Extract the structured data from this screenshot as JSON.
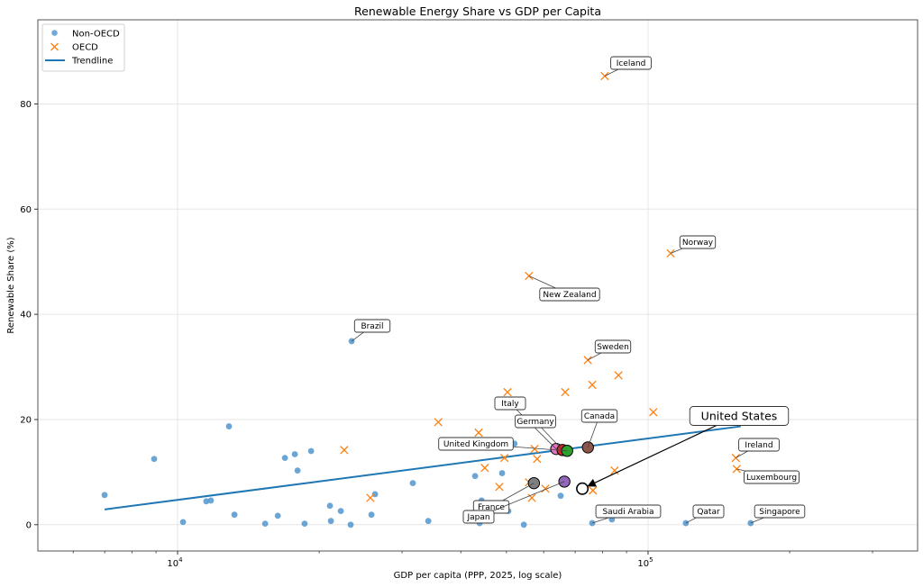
{
  "chart_data": {
    "type": "scatter",
    "title": "Renewable Energy Share vs GDP per Capita",
    "xlabel": "GDP per capita (PPP, 2025, log scale)",
    "ylabel": "Renewable Share (%)",
    "xscale": "log",
    "xlim": [
      5047,
      374000
    ],
    "ylim": [
      -5,
      96
    ],
    "x_ticks": [
      {
        "value": 10000,
        "base": "10",
        "exp": "4"
      },
      {
        "value": 100000,
        "base": "10",
        "exp": "5"
      }
    ],
    "y_ticks": [
      0,
      20,
      40,
      60,
      80
    ],
    "y_tick_labels": [
      "0",
      "20",
      "40",
      "60",
      "80"
    ],
    "grid": true,
    "legend": {
      "placement": "top-left",
      "entries": [
        "Non-OECD",
        "OECD",
        "Trendline"
      ]
    },
    "colors": {
      "non_oecd": "#5b9bd0",
      "oecd": "#ff7f0e",
      "trendline": "#1f77b4"
    },
    "series": [
      {
        "name": "Non-OECD",
        "marker": "circle",
        "points": [
          [
            6998,
            5.65
          ],
          [
            8917,
            12.5
          ],
          [
            12860,
            18.7
          ],
          [
            10270,
            0.5
          ],
          [
            11510,
            4.45
          ],
          [
            11770,
            4.6
          ],
          [
            13210,
            1.9
          ],
          [
            15350,
            0.2
          ],
          [
            16330,
            1.7
          ],
          [
            16910,
            12.7
          ],
          [
            17750,
            13.4
          ],
          [
            19220,
            14.0
          ],
          [
            17990,
            10.3
          ],
          [
            18620,
            0.2
          ],
          [
            21080,
            3.6
          ],
          [
            22230,
            2.6
          ],
          [
            21180,
            0.7
          ],
          [
            23330,
            0.0
          ],
          [
            25830,
            1.9
          ],
          [
            26290,
            5.8
          ],
          [
            23440,
            34.9
          ],
          [
            31620,
            7.9
          ],
          [
            34110,
            0.7
          ],
          [
            42890,
            9.25
          ],
          [
            48950,
            9.8
          ],
          [
            44270,
            4.6
          ],
          [
            43850,
            0.3
          ],
          [
            50470,
            2.6
          ],
          [
            54440,
            0.0
          ],
          [
            52010,
            15.4
          ],
          [
            65190,
            5.5
          ],
          [
            76080,
            0.3
          ],
          [
            83780,
            1.0
          ],
          [
            120300,
            0.3
          ],
          [
            165200,
            0.3
          ]
        ]
      },
      {
        "name": "OECD",
        "marker": "x",
        "points": [
          [
            80900,
            85.3
          ],
          [
            111700,
            51.6
          ],
          [
            55830,
            47.3
          ],
          [
            74470,
            31.3
          ],
          [
            86500,
            28.4
          ],
          [
            76080,
            26.6
          ],
          [
            66660,
            25.2
          ],
          [
            50260,
            25.2
          ],
          [
            102600,
            21.4
          ],
          [
            35810,
            19.5
          ],
          [
            22600,
            14.2
          ],
          [
            43640,
            17.5
          ],
          [
            57390,
            14.4
          ],
          [
            58090,
            12.5
          ],
          [
            49520,
            12.7
          ],
          [
            44970,
            10.8
          ],
          [
            48290,
            7.2
          ],
          [
            55830,
            8.05
          ],
          [
            60480,
            6.85
          ],
          [
            56610,
            5.1
          ],
          [
            76340,
            6.5
          ],
          [
            84920,
            10.3
          ],
          [
            153600,
            12.7
          ],
          [
            154300,
            10.6
          ],
          [
            25690,
            5.1
          ]
        ]
      }
    ],
    "trendline": {
      "name": "Trendline",
      "x": [
        6998,
        157400
      ],
      "y": [
        2.9,
        18.7
      ]
    },
    "highlighted": [
      {
        "name": "Italy",
        "x": 63800,
        "y": 14.4,
        "color": "#e377c2"
      },
      {
        "name": "Germany",
        "x": 65800,
        "y": 14.2,
        "color": "#d62728"
      },
      {
        "name": "United Kingdom",
        "x": 67300,
        "y": 14.05,
        "color": "#2ca02c"
      },
      {
        "name": "Canada",
        "x": 74500,
        "y": 14.7,
        "color": "#8c564b"
      },
      {
        "name": "France",
        "x": 57200,
        "y": 7.9,
        "color": "#7f7f7f"
      },
      {
        "name": "Japan",
        "x": 66400,
        "y": 8.2,
        "color": "#9467bd"
      },
      {
        "name": "United States",
        "x": 72500,
        "y": 6.85,
        "color": "none"
      }
    ],
    "annotations": [
      {
        "text": "Iceland",
        "x": 80900,
        "y": 85.3
      },
      {
        "text": "Norway",
        "x": 111700,
        "y": 51.6
      },
      {
        "text": "New Zealand",
        "x": 55830,
        "y": 47.3
      },
      {
        "text": "Brazil",
        "x": 23440,
        "y": 34.9
      },
      {
        "text": "Sweden",
        "x": 74470,
        "y": 31.3
      },
      {
        "text": "Italy",
        "x": 63800,
        "y": 14.4
      },
      {
        "text": "Germany",
        "x": 65800,
        "y": 14.2
      },
      {
        "text": "Canada",
        "x": 74500,
        "y": 14.7
      },
      {
        "text": "United Kingdom",
        "x": 67300,
        "y": 14.05
      },
      {
        "text": "United States",
        "x": 72500,
        "y": 6.85
      },
      {
        "text": "Ireland",
        "x": 153600,
        "y": 12.7
      },
      {
        "text": "Luxembourg",
        "x": 154300,
        "y": 10.6
      },
      {
        "text": "France",
        "x": 57200,
        "y": 7.9
      },
      {
        "text": "Japan",
        "x": 66400,
        "y": 8.2
      },
      {
        "text": "Saudi Arabia",
        "x": 76080,
        "y": 0.3
      },
      {
        "text": "Qatar",
        "x": 120300,
        "y": 0.3
      },
      {
        "text": "Singapore",
        "x": 165200,
        "y": 0.3
      }
    ]
  }
}
